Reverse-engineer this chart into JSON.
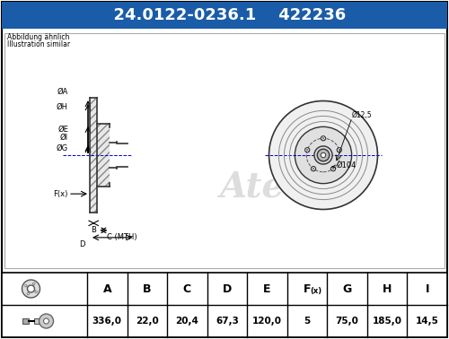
{
  "part_number": "24.0122-0236.1",
  "ref_number": "422236",
  "note_line1": "Abbildung ähnlich",
  "note_line2": "Illustration similar",
  "header_bg": "#1a5ca8",
  "header_text_color": "#ffffff",
  "bg_color": "#ffffff",
  "border_color": "#000000",
  "table_headers": [
    "A",
    "B",
    "C",
    "D",
    "E",
    "F(x)",
    "G",
    "H",
    "I"
  ],
  "table_values": [
    "336,0",
    "22,0",
    "20,4",
    "67,3",
    "120,0",
    "5",
    "75,0",
    "185,0",
    "14,5"
  ],
  "dim_labels_left": [
    "ØI",
    "ØG",
    "ØE",
    "ØH",
    "ØA",
    "F(x)",
    "B",
    "C (MTH)",
    "D"
  ],
  "diagram_annotations": [
    "Ø104",
    "Ø12,5"
  ],
  "fig_width": 5.0,
  "fig_height": 3.78
}
